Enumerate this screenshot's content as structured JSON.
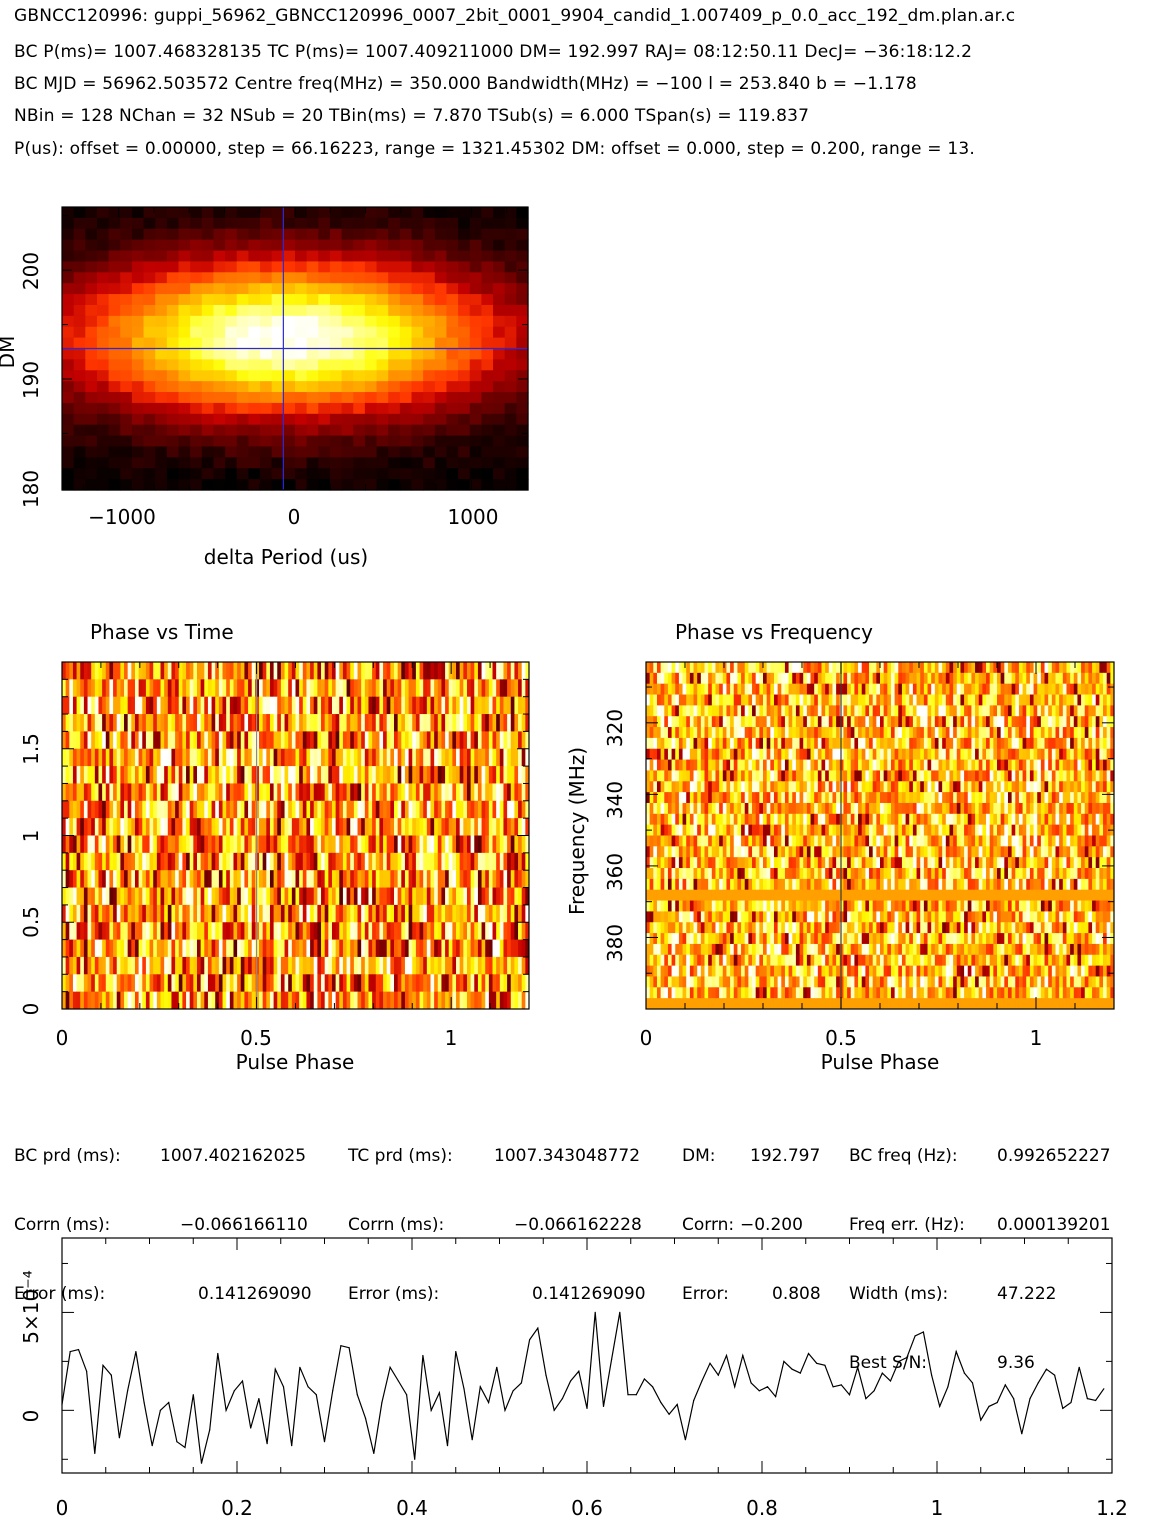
{
  "header": {
    "title": "GBNCC120996: guppi_56962_GBNCC120996_0007_2bit_0001_9904_candid_1.007409_p_0.0_acc_192_dm.plan.ar.c",
    "line1": "BC P(ms)= 1007.468328135 TC P(ms)= 1007.409211000 DM= 192.997 RAJ= 08:12:50.11 DecJ= −36:18:12.2",
    "line2": "BC MJD = 56962.503572 Centre freq(MHz) = 350.000 Bandwidth(MHz) = −100 l = 253.840 b = −1.178",
    "line3": "NBin = 128 NChan = 32 NSub = 20 TBin(ms) = 7.870 TSub(s) = 6.000 TSpan(s) = 119.837",
    "line4": "P(us): offset = 0.00000, step = 66.16223, range = 1321.45302 DM: offset = 0.000, step = 0.200, range = 13."
  },
  "panels": {
    "dm_period": {
      "ylabel": "DM",
      "xlabel": "delta Period (us)",
      "xticks": [
        "−1000",
        "0",
        "1000"
      ],
      "yticks": [
        "180",
        "190",
        "200"
      ]
    },
    "phase_time": {
      "title": "Phase vs Time",
      "xlabel": "Pulse Phase",
      "xticks": [
        "0",
        "0.5",
        "1"
      ],
      "yticks": [
        "0",
        "0.5",
        "1",
        "1.5"
      ]
    },
    "phase_freq": {
      "title": "Phase vs Frequency",
      "ylabel": "Frequency (MHz)",
      "xlabel": "Pulse Phase",
      "xticks": [
        "0",
        "0.5",
        "1"
      ],
      "yticks": [
        "320",
        "340",
        "360",
        "380"
      ]
    },
    "profile": {
      "xticks": [
        "0",
        "0.2",
        "0.4",
        "0.6",
        "0.8",
        "1",
        "1.2"
      ],
      "yticks": [
        "0",
        "5×10⁻⁴"
      ]
    }
  },
  "stats": {
    "rows": [
      [
        "BC prd (ms):",
        "1007.402162025",
        "TC prd (ms):",
        "1007.343048772",
        "DM:",
        "192.797",
        "BC freq (Hz):",
        "0.992652227"
      ],
      [
        "Corrn (ms):",
        "−0.066166110",
        "Corrn (ms):",
        "−0.066162228",
        "Corrn:",
        "−0.200",
        "Freq err. (Hz):",
        "0.000139201"
      ],
      [
        "Error (ms):",
        "0.141269090",
        "Error (ms):",
        "0.141269090",
        "Error:",
        "0.808",
        "Width (ms):",
        "47.222"
      ],
      [
        "",
        "",
        "",
        "",
        "",
        "",
        "Best S/N:",
        "9.36"
      ]
    ]
  },
  "chart_data": [
    {
      "type": "heatmap",
      "name": "DM vs delta Period",
      "xlabel": "delta Period (us)",
      "ylabel": "DM",
      "xlim": [
        -1321.45,
        1321.45
      ],
      "ylim": [
        179.8,
        205.8
      ],
      "crosshair": {
        "x": -66,
        "y": 192.8
      },
      "colormap": "heat"
    },
    {
      "type": "heatmap",
      "name": "Phase vs Time",
      "xlabel": "Pulse Phase",
      "xlim": [
        0,
        1.2
      ],
      "ylim": [
        0,
        2
      ],
      "marker_x": 0.5,
      "colormap": "heat"
    },
    {
      "type": "heatmap",
      "name": "Phase vs Frequency",
      "xlabel": "Pulse Phase",
      "ylabel": "Frequency (MHz)",
      "xlim": [
        0,
        1.2
      ],
      "ylim": [
        400,
        303
      ],
      "marker_x": 0.5,
      "colormap": "heat"
    },
    {
      "type": "line",
      "name": "Pulse profile",
      "xlim": [
        0,
        1.2
      ],
      "ylim": [
        -0.00032,
        0.00088
      ],
      "x": [
        0.0,
        0.0094,
        0.0188,
        0.0281,
        0.0375,
        0.0469,
        0.0563,
        0.0656,
        0.075,
        0.0844,
        0.0938,
        0.1031,
        0.1125,
        0.1219,
        0.1313,
        0.1406,
        0.15,
        0.1594,
        0.1688,
        0.1781,
        0.1875,
        0.1969,
        0.2063,
        0.2156,
        0.225,
        0.2344,
        0.2438,
        0.2531,
        0.2625,
        0.2719,
        0.2813,
        0.2906,
        0.3,
        0.3094,
        0.3188,
        0.3281,
        0.3375,
        0.3469,
        0.3563,
        0.3656,
        0.375,
        0.3844,
        0.3938,
        0.4031,
        0.4125,
        0.4219,
        0.4313,
        0.4406,
        0.45,
        0.4594,
        0.4688,
        0.4781,
        0.4875,
        0.4969,
        0.5063,
        0.5156,
        0.525,
        0.5344,
        0.5438,
        0.5531,
        0.5625,
        0.5719,
        0.5813,
        0.5906,
        0.6,
        0.6094,
        0.6188,
        0.6281,
        0.6375,
        0.6469,
        0.6563,
        0.6656,
        0.675,
        0.6844,
        0.6938,
        0.7031,
        0.7125,
        0.7219,
        0.7313,
        0.7406,
        0.75,
        0.7594,
        0.7688,
        0.7781,
        0.7875,
        0.7969,
        0.8063,
        0.8156,
        0.825,
        0.8344,
        0.8438,
        0.8531,
        0.8625,
        0.8719,
        0.8813,
        0.8906,
        0.9,
        0.9094,
        0.9188,
        0.9281,
        0.9375,
        0.9469,
        0.9563,
        0.9656,
        0.975,
        0.9844,
        0.9938,
        1.0031,
        1.0125,
        1.0219,
        1.0313,
        1.0406,
        1.05,
        1.0594,
        1.0688,
        1.0781,
        1.0875,
        1.0969,
        1.1063,
        1.1156,
        1.125,
        1.1344,
        1.1438,
        1.1531,
        1.1625,
        1.1719,
        1.1813,
        1.1906
      ],
      "values": [
        3e-05,
        0.0003,
        0.00031,
        0.0002,
        -0.00022,
        0.00023,
        0.00018,
        -0.00014,
        0.0001,
        0.0003,
        4e-05,
        -0.00018,
        0.0,
        4e-05,
        -0.00016,
        -0.00019,
        8e-05,
        -0.00027,
        -0.0001,
        0.00029,
        0.0,
        0.0001,
        0.00015,
        -9e-05,
        6e-05,
        -0.00017,
        0.00021,
        0.00012,
        -0.00018,
        0.00022,
        0.00012,
        8e-05,
        -0.00016,
        0.0001,
        0.00033,
        0.00032,
        8e-05,
        -4e-05,
        -0.00022,
        4e-05,
        0.00022,
        0.00015,
        8e-05,
        -0.00025,
        0.00028,
        0.0,
        9e-05,
        -0.00018,
        0.0003,
        0.00011,
        -0.00015,
        0.00012,
        4e-05,
        0.00022,
        0.0,
        0.0001,
        0.00014,
        0.00036,
        0.00042,
        0.00018,
        0.0,
        6e-05,
        0.00015,
        0.0002,
        1e-05,
        0.0005,
        2e-05,
        0.00026,
        0.0005,
        8e-05,
        8e-05,
        0.00016,
        0.00012,
        4e-05,
        -2e-05,
        3e-05,
        -0.00015,
        5e-05,
        0.00015,
        0.00024,
        0.00018,
        0.00028,
        0.00012,
        0.00028,
        0.00014,
        0.0001,
        0.00012,
        7e-05,
        0.00025,
        0.00021,
        0.00019,
        0.00029,
        0.00024,
        0.00023,
        0.00012,
        0.00013,
        8e-05,
        0.00022,
        6e-05,
        0.0001,
        0.00019,
        0.00015,
        0.00025,
        0.00027,
        0.00038,
        0.0004,
        0.00018,
        2e-05,
        0.00012,
        0.0003,
        0.00019,
        0.00014,
        -5e-05,
        2e-05,
        4e-05,
        0.00013,
        6e-05,
        -0.00012,
        6e-05,
        0.00014,
        0.00021,
        0.00018,
        1e-05,
        4e-05,
        0.00022,
        6e-05,
        5e-05,
        0.00011
      ],
      "notes_peak_region": [
        0.925,
        0.975
      ]
    }
  ]
}
